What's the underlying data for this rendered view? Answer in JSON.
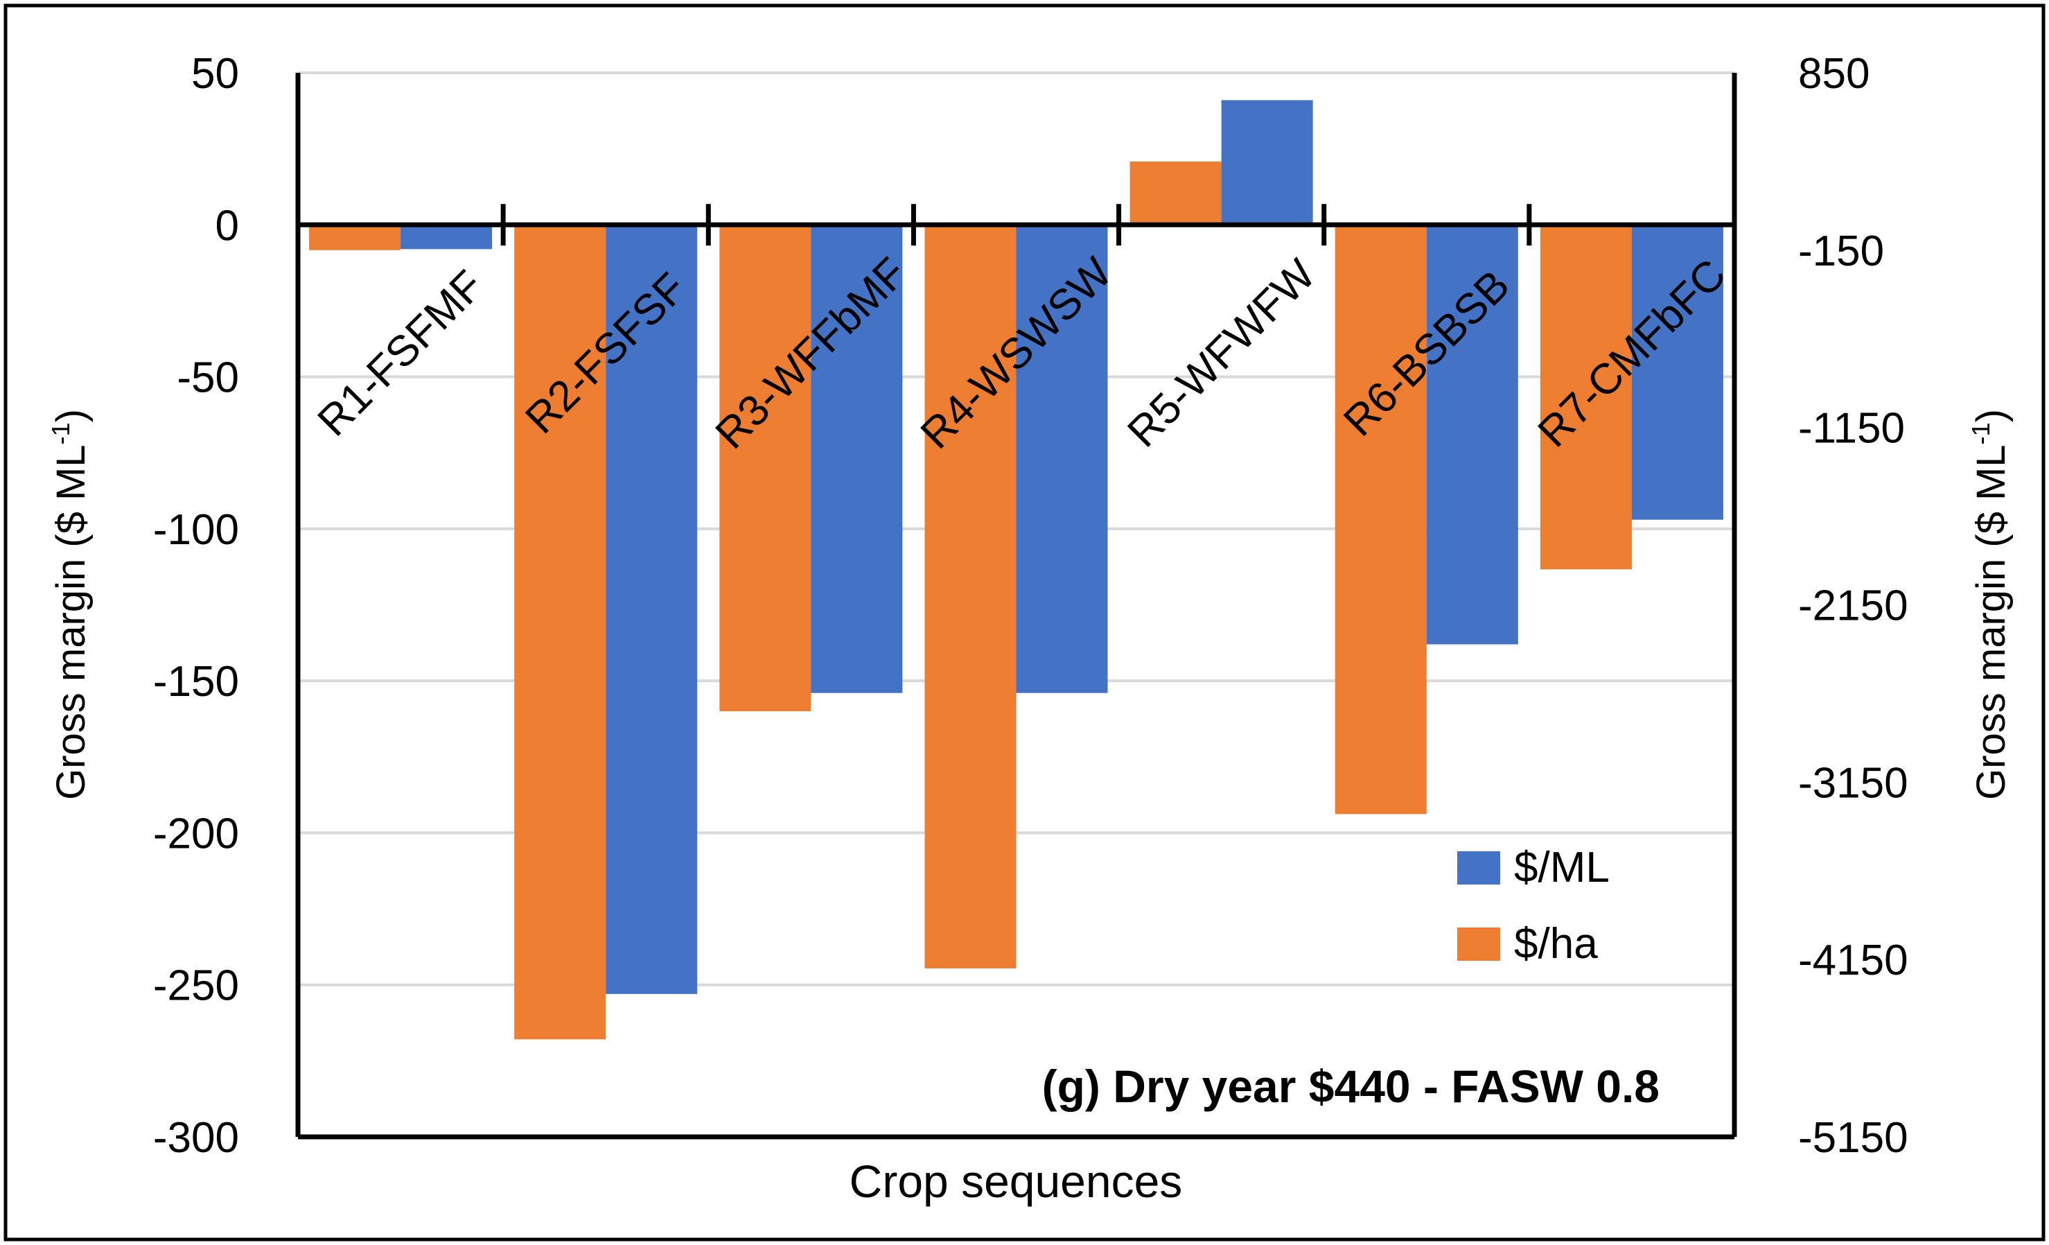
{
  "chart_data": {
    "type": "bar",
    "title": "(g) Dry year $440 - FASW 0.8",
    "xlabel": "Crop sequences",
    "ylabel_prefix": "Gross margin ($ ML",
    "ylabel_sup": "-1",
    "ylabel_suffix": ")",
    "ylabel_right_prefix": "Gross margin ($ ML",
    "ylabel_right_sup": "-1",
    "ylabel_right_suffix": ")",
    "categories": [
      "R1-FSFMF",
      "R2-FSFSF",
      "R3-WFFbMF",
      "R4-WSWSW",
      "R5-WFWFW",
      "R6-BSBSB",
      "R7-CMFbFC"
    ],
    "ylim": [
      -300,
      50
    ],
    "yticks": [
      "50",
      "0",
      "-50",
      "-100",
      "-150",
      "-200",
      "-250",
      "-300"
    ],
    "y2lim": [
      -5150,
      850
    ],
    "y2ticks": [
      "850",
      "-150",
      "-1150",
      "-2150",
      "-3150",
      "-4150",
      "-5150"
    ],
    "series": [
      {
        "name": "$/ha",
        "axis": "right",
        "color": "#ED7D31",
        "values": [
          -150,
          -4600,
          -2750,
          -4200,
          350,
          -3330,
          -1950
        ]
      },
      {
        "name": "$/ML",
        "axis": "left",
        "color": "#4472C4",
        "values": [
          -8,
          -253,
          -154,
          -154,
          41,
          -138,
          -97
        ]
      }
    ],
    "legend": {
      "position": "bottom-right",
      "items": [
        "$/ML",
        "$/ha"
      ]
    },
    "gridlines": true
  }
}
